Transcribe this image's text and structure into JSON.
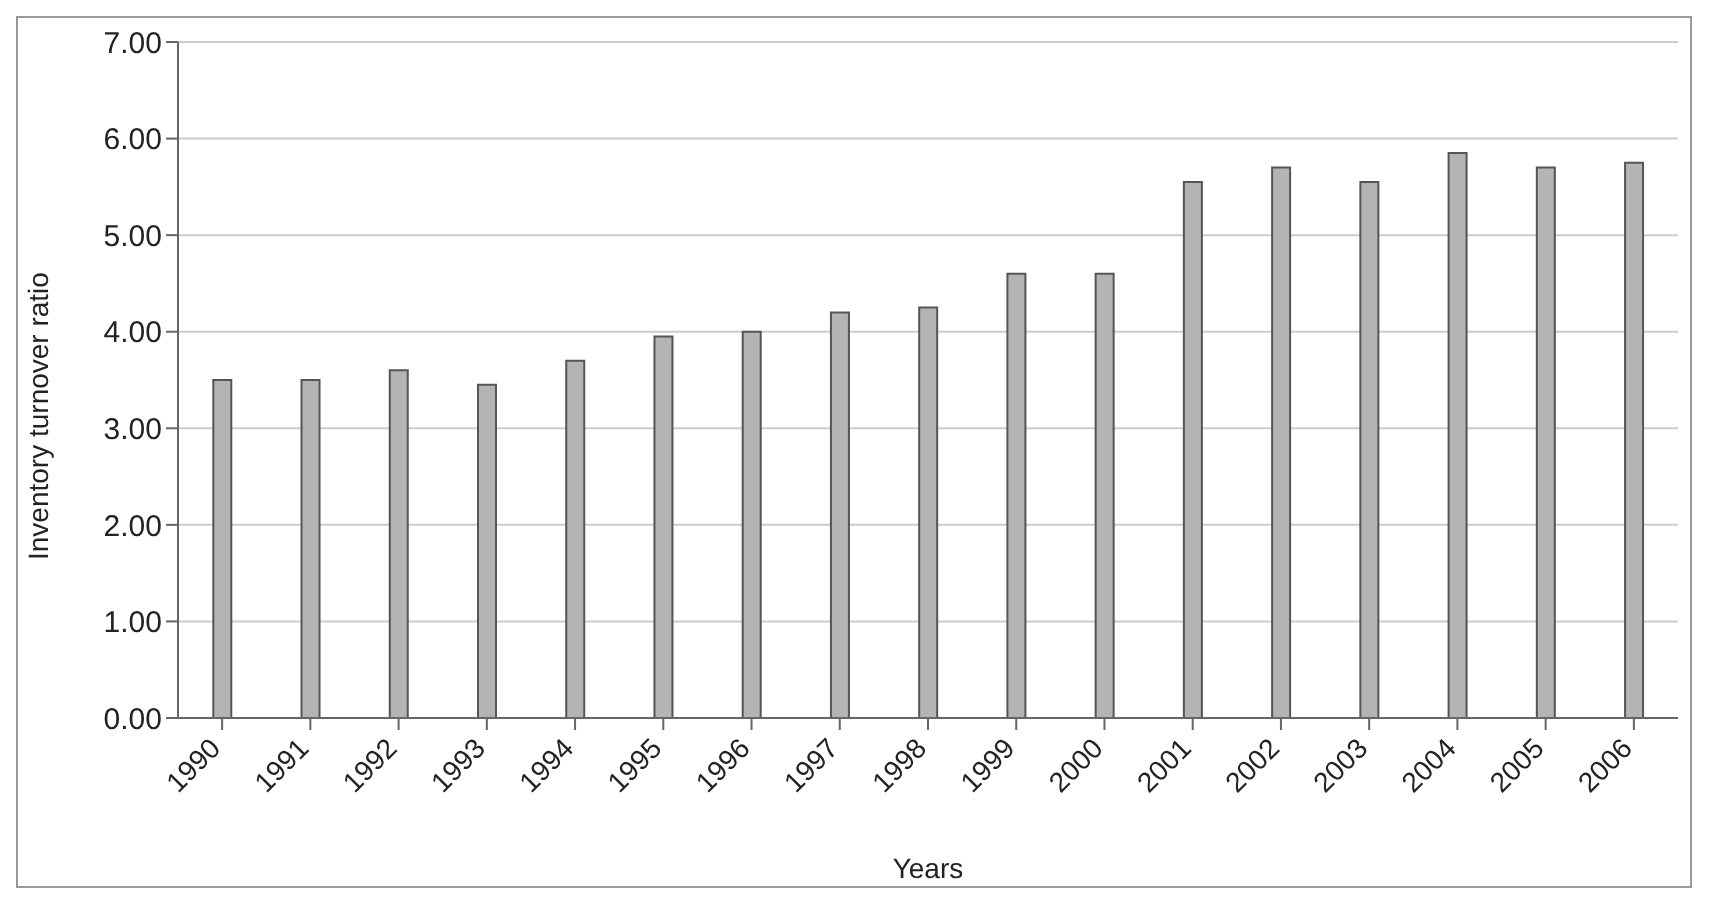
{
  "chart_data": {
    "type": "bar",
    "xlabel": "Years",
    "ylabel": "Inventory turnover ratio",
    "categories": [
      "1990",
      "1991",
      "1992",
      "1993",
      "1994",
      "1995",
      "1996",
      "1997",
      "1998",
      "1999",
      "2000",
      "2001",
      "2002",
      "2003",
      "2004",
      "2005",
      "2006"
    ],
    "values": [
      3.5,
      3.5,
      3.6,
      3.45,
      3.7,
      3.95,
      4.0,
      4.2,
      4.25,
      4.6,
      4.6,
      5.55,
      5.7,
      5.55,
      5.85,
      5.7,
      5.75
    ],
    "color": "#b4b4b4",
    "ylim": [
      0,
      7
    ],
    "yticks": [
      {
        "value": 0,
        "label": "0.00"
      },
      {
        "value": 1,
        "label": "1.00"
      },
      {
        "value": 2,
        "label": "2.00"
      },
      {
        "value": 3,
        "label": "3.00"
      },
      {
        "value": 4,
        "label": "4.00"
      },
      {
        "value": 5,
        "label": "5.00"
      },
      {
        "value": 6,
        "label": "6.00"
      },
      {
        "value": 7,
        "label": "7.00"
      }
    ],
    "grid": "y"
  }
}
